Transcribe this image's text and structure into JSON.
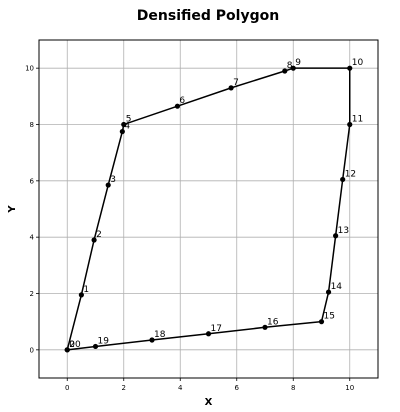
{
  "chart_data": {
    "type": "line",
    "title": "Densified Polygon",
    "xlabel": "X",
    "ylabel": "Y",
    "xlim": [
      -1,
      11
    ],
    "ylim": [
      -1,
      11
    ],
    "xticks": [
      0,
      2,
      4,
      6,
      8,
      10
    ],
    "yticks": [
      0,
      2,
      4,
      6,
      8,
      10
    ],
    "grid": true,
    "series": [
      {
        "closed": true,
        "color": "#000000",
        "points": [
          {
            "label": "0",
            "x": 0.0,
            "y": 0.0
          },
          {
            "label": "1",
            "x": 0.5,
            "y": 1.95
          },
          {
            "label": "2",
            "x": 0.95,
            "y": 3.9
          },
          {
            "label": "3",
            "x": 1.45,
            "y": 5.85
          },
          {
            "label": "4",
            "x": 1.95,
            "y": 7.75
          },
          {
            "label": "5",
            "x": 2.0,
            "y": 8.0
          },
          {
            "label": "6",
            "x": 3.9,
            "y": 8.65
          },
          {
            "label": "7",
            "x": 5.8,
            "y": 9.3
          },
          {
            "label": "8",
            "x": 7.7,
            "y": 9.9
          },
          {
            "label": "9",
            "x": 8.0,
            "y": 10.0
          },
          {
            "label": "10",
            "x": 10.0,
            "y": 10.0
          },
          {
            "label": "11",
            "x": 10.0,
            "y": 8.0
          },
          {
            "label": "12",
            "x": 9.75,
            "y": 6.05
          },
          {
            "label": "13",
            "x": 9.5,
            "y": 4.05
          },
          {
            "label": "14",
            "x": 9.25,
            "y": 2.05
          },
          {
            "label": "15",
            "x": 9.0,
            "y": 1.0
          },
          {
            "label": "16",
            "x": 7.0,
            "y": 0.8
          },
          {
            "label": "17",
            "x": 5.0,
            "y": 0.57
          },
          {
            "label": "18",
            "x": 3.0,
            "y": 0.35
          },
          {
            "label": "19",
            "x": 1.0,
            "y": 0.12
          },
          {
            "label": "20",
            "x": 0.0,
            "y": 0.0
          }
        ]
      }
    ]
  }
}
